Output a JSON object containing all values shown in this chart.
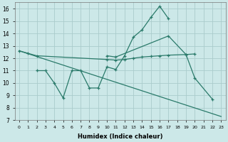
{
  "xlabel": "Humidex (Indice chaleur)",
  "background_color": "#cce8e8",
  "grid_color": "#aacccc",
  "line_color": "#2a7a6a",
  "xlim": [
    -0.5,
    23.5
  ],
  "ylim": [
    7,
    16.5
  ],
  "xticks": [
    0,
    1,
    2,
    3,
    4,
    5,
    6,
    7,
    8,
    9,
    10,
    11,
    12,
    13,
    14,
    15,
    16,
    17,
    18,
    19,
    20,
    21,
    22,
    23
  ],
  "yticks": [
    7,
    8,
    9,
    10,
    11,
    12,
    13,
    14,
    15,
    16
  ],
  "series1_x": [
    0,
    1,
    2,
    10,
    11,
    12,
    13,
    14,
    15,
    16,
    17,
    19,
    20
  ],
  "series1_y": [
    12.6,
    12.4,
    12.2,
    11.9,
    11.85,
    11.9,
    12.0,
    12.1,
    12.15,
    12.2,
    12.25,
    12.3,
    12.35
  ],
  "series2_x": [
    2,
    3,
    4,
    5,
    6,
    7,
    8,
    9,
    10,
    11,
    12,
    13,
    14,
    15,
    16,
    17
  ],
  "series2_y": [
    11.0,
    11.0,
    10.0,
    8.8,
    11.0,
    11.0,
    9.6,
    9.6,
    11.3,
    11.1,
    12.2,
    13.7,
    14.3,
    15.3,
    16.2,
    15.2
  ],
  "series3_x": [
    10,
    11,
    17,
    19,
    20,
    22
  ],
  "series3_y": [
    12.2,
    12.1,
    13.8,
    12.3,
    10.4,
    8.7
  ],
  "series4_x": [
    0,
    23
  ],
  "series4_y": [
    12.6,
    7.3
  ]
}
